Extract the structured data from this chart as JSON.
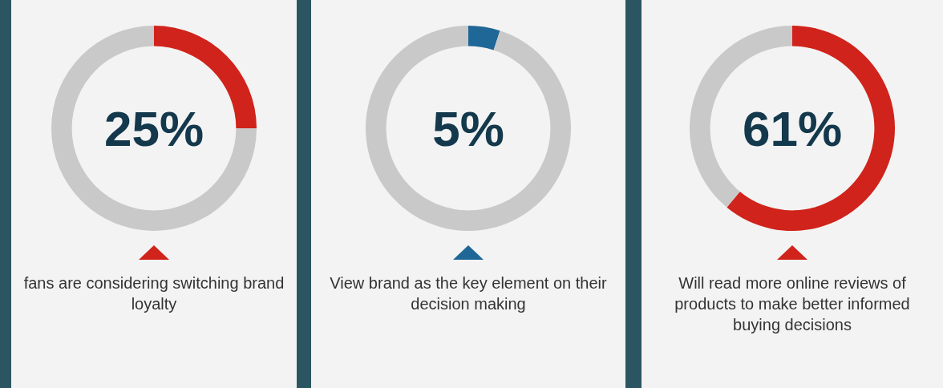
{
  "chart_data": [
    {
      "type": "donut",
      "title": "25%",
      "categories": [
        null,
        null
      ],
      "values": [
        25,
        75
      ],
      "colors": [
        "#d0231b",
        "#c9c9c9"
      ],
      "annotations": [
        "fans are considering switching brand loyalty"
      ]
    },
    {
      "type": "donut",
      "title": "5%",
      "categories": [
        null,
        null
      ],
      "values": [
        5,
        95
      ],
      "colors": [
        "#1f6796",
        "#c9c9c9"
      ],
      "annotations": [
        "View brand as the key element on their decision making"
      ]
    },
    {
      "type": "donut",
      "title": "61%",
      "categories": [
        null,
        null
      ],
      "values": [
        61,
        39
      ],
      "colors": [
        "#d0231b",
        "#c9c9c9"
      ],
      "annotations": [
        "Will read more online reviews of products to make better informed buying decisions"
      ]
    }
  ]
}
